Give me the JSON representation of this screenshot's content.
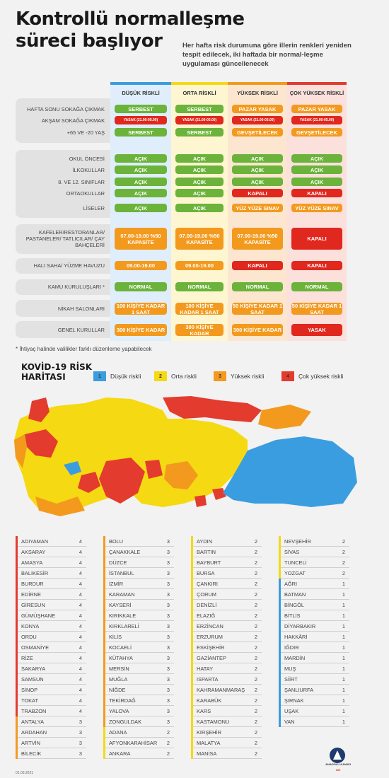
{
  "title_line1": "Kontrollü normalleşme",
  "title_line2": "süreci başlıyor",
  "subtitle": "Her hafta risk durumuna göre illerin renkleri yeniden tespit edilecek, iki haftada bir normal-leşme uygulaması güncellenecek",
  "columns": [
    "DÜŞÜK RİSKLİ",
    "ORTA RİSKLİ",
    "YÜKSEK RİSKLİ",
    "ÇOK YÜKSEK RİSKLİ"
  ],
  "column_colors": [
    "#3a9de0",
    "#f5d912",
    "#f39a1e",
    "#e33b2e"
  ],
  "rows": [
    {
      "label": "HAFTA SONU SOKAĞA ÇIKMAK",
      "cells": [
        [
          "SERBEST",
          "g"
        ],
        [
          "SERBEST",
          "g"
        ],
        [
          "PAZAR YASAK",
          "o"
        ],
        [
          "PAZAR YASAK",
          "o"
        ]
      ]
    },
    {
      "label": "AKŞAM SOKAĞA ÇIKMAK",
      "cells": [
        [
          "YASAK (21.00-05.00)",
          "r"
        ],
        [
          "YASAK (21.00-05.00)",
          "r"
        ],
        [
          "YASAK (21.00-05.00)",
          "r"
        ],
        [
          "YASAK (21.00-05.00)",
          "r"
        ]
      ]
    },
    {
      "label": "+65 VE -20 YAŞ",
      "cells": [
        [
          "SERBEST",
          "g"
        ],
        [
          "SERBEST",
          "g"
        ],
        [
          "GEVŞETİLECEK",
          "o"
        ],
        [
          "GEVŞETİLECEK",
          "o"
        ]
      ]
    },
    {
      "label": "OKUL ÖNCESİ",
      "cells": [
        [
          "AÇIK",
          "g"
        ],
        [
          "AÇIK",
          "g"
        ],
        [
          "AÇIK",
          "g"
        ],
        [
          "AÇIK",
          "g"
        ]
      ]
    },
    {
      "label": "İLKOKULLAR",
      "cells": [
        [
          "AÇIK",
          "g"
        ],
        [
          "AÇIK",
          "g"
        ],
        [
          "AÇIK",
          "g"
        ],
        [
          "AÇIK",
          "g"
        ]
      ]
    },
    {
      "label": "8. VE 12. SINIFLAR",
      "cells": [
        [
          "AÇIK",
          "g"
        ],
        [
          "AÇIK",
          "g"
        ],
        [
          "AÇIK",
          "g"
        ],
        [
          "AÇIK",
          "g"
        ]
      ]
    },
    {
      "label": "ORTAOKULLAR",
      "cells": [
        [
          "AÇIK",
          "g"
        ],
        [
          "AÇIK",
          "g"
        ],
        [
          "KAPALI",
          "r"
        ],
        [
          "KAPALI",
          "r"
        ]
      ]
    },
    {
      "label": "LİSELER",
      "cells": [
        [
          "AÇIK",
          "g"
        ],
        [
          "AÇIK",
          "g"
        ],
        [
          "YÜZ YÜZE SINAV",
          "o"
        ],
        [
          "YÜZ YÜZE SINAV",
          "o"
        ]
      ]
    },
    {
      "label": "KAFELER/RESTORANLAR/ PASTANELER/ TATLICILAR/ ÇAY BAHÇELERİ",
      "cells": [
        [
          "07.00-19.00 %50 KAPASİTE",
          "o"
        ],
        [
          "07.00-19.00 %50 KAPASİTE",
          "o"
        ],
        [
          "07.00-19.00 %50 KAPASİTE",
          "o"
        ],
        [
          "KAPALI",
          "r"
        ]
      ]
    },
    {
      "label": "HALI SAHA/ YÜZME HAVUZU",
      "cells": [
        [
          "09.00-19.00",
          "o"
        ],
        [
          "09.00-19.00",
          "o"
        ],
        [
          "KAPALI",
          "r"
        ],
        [
          "KAPALI",
          "r"
        ]
      ]
    },
    {
      "label": "KAMU KURULUŞLARI *",
      "cells": [
        [
          "NORMAL",
          "g"
        ],
        [
          "NORMAL",
          "g"
        ],
        [
          "NORMAL",
          "g"
        ],
        [
          "NORMAL",
          "g"
        ]
      ]
    },
    {
      "label": "NİKAH SALONLARI",
      "cells": [
        [
          "100 KİŞİYE KADAR 1 SAAT",
          "o"
        ],
        [
          "100 KİŞİYE KADAR 1 SAAT",
          "o"
        ],
        [
          "50 KİŞİYE KADAR 1 SAAT",
          "o"
        ],
        [
          "50 KİŞİYE KADAR 1 SAAT",
          "o"
        ]
      ]
    },
    {
      "label": "GENEL KURULLAR",
      "cells": [
        [
          "300 KİŞİYE KADAR",
          "o"
        ],
        [
          "300 KİŞİYE KADAR",
          "o"
        ],
        [
          "300 KİŞİYE KADAR",
          "o"
        ],
        [
          "YASAK",
          "r"
        ]
      ]
    }
  ],
  "footnote": "* İhtiyaç halinde valilikler farklı düzenleme yapabilecek",
  "map_title_line1": "KOVİD-19 RİSK",
  "map_title_line2": "HARİTASI",
  "legend": [
    {
      "num": "1",
      "label": "Düşük riskli",
      "color": "#3a9de0"
    },
    {
      "num": "2",
      "label": "Orta riskli",
      "color": "#f5d912"
    },
    {
      "num": "3",
      "label": "Yüksek riskli",
      "color": "#f39a1e"
    },
    {
      "num": "4",
      "label": "Çok yüksek riskli",
      "color": "#e33b2e"
    }
  ],
  "province_lists": [
    [
      [
        "ADIYAMAN",
        "4"
      ],
      [
        "AKSARAY",
        "4"
      ],
      [
        "AMASYA",
        "4"
      ],
      [
        "BALIKESİR",
        "4"
      ],
      [
        "BURDUR",
        "4"
      ],
      [
        "EDİRNE",
        "4"
      ],
      [
        "GİRESUN",
        "4"
      ],
      [
        "GÜMÜŞHANE",
        "4"
      ],
      [
        "KONYA",
        "4"
      ],
      [
        "ORDU",
        "4"
      ],
      [
        "OSMANİYE",
        "4"
      ],
      [
        "RİZE",
        "4"
      ],
      [
        "SAKARYA",
        "4"
      ],
      [
        "SAMSUN",
        "4"
      ],
      [
        "SİNOP",
        "4"
      ],
      [
        "TOKAT",
        "4"
      ],
      [
        "TRABZON",
        "4"
      ],
      [
        "ANTALYA",
        "3"
      ],
      [
        "ARDAHAN",
        "3"
      ],
      [
        "ARTVİN",
        "3"
      ],
      [
        "BİLECİK",
        "3"
      ]
    ],
    [
      [
        "BOLU",
        "3"
      ],
      [
        "ÇANAKKALE",
        "3"
      ],
      [
        "DÜZCE",
        "3"
      ],
      [
        "İSTANBUL",
        "3"
      ],
      [
        "İZMİR",
        "3"
      ],
      [
        "KARAMAN",
        "3"
      ],
      [
        "KAYSERİ",
        "3"
      ],
      [
        "KIRIKKALE",
        "3"
      ],
      [
        "KIRKLARELİ",
        "3"
      ],
      [
        "KİLİS",
        "3"
      ],
      [
        "KOCAELİ",
        "3"
      ],
      [
        "KÜTAHYA",
        "3"
      ],
      [
        "MERSİN",
        "3"
      ],
      [
        "MUĞLA",
        "3"
      ],
      [
        "NİĞDE",
        "3"
      ],
      [
        "TEKİRDAĞ",
        "3"
      ],
      [
        "YALOVA",
        "3"
      ],
      [
        "ZONGULDAK",
        "3"
      ],
      [
        "ADANA",
        "2"
      ],
      [
        "AFYONKARAHİSAR",
        "2"
      ],
      [
        "ANKARA",
        "2"
      ]
    ],
    [
      [
        "AYDIN",
        "2"
      ],
      [
        "BARTIN",
        "2"
      ],
      [
        "BAYBURT",
        "2"
      ],
      [
        "BURSA",
        "2"
      ],
      [
        "ÇANKIRI",
        "2"
      ],
      [
        "ÇORUM",
        "2"
      ],
      [
        "DENİZLİ",
        "2"
      ],
      [
        "ELAZIĞ",
        "2"
      ],
      [
        "ERZİNCAN",
        "2"
      ],
      [
        "ERZURUM",
        "2"
      ],
      [
        "ESKİŞEHİR",
        "2"
      ],
      [
        "GAZİANTEP",
        "2"
      ],
      [
        "HATAY",
        "2"
      ],
      [
        "ISPARTA",
        "2"
      ],
      [
        "KAHRAMANMARAŞ",
        "2"
      ],
      [
        "KARABÜK",
        "2"
      ],
      [
        "KARS",
        "2"
      ],
      [
        "KASTAMONU",
        "2"
      ],
      [
        "KIRŞEHİR",
        "2"
      ],
      [
        "MALATYA",
        "2"
      ],
      [
        "MANİSA",
        "2"
      ]
    ],
    [
      [
        "NEVŞEHİR",
        "2"
      ],
      [
        "SİVAS",
        "2"
      ],
      [
        "TUNCELİ",
        "2"
      ],
      [
        "YOZGAT",
        "2"
      ],
      [
        "AĞRI",
        "1"
      ],
      [
        "BATMAN",
        "1"
      ],
      [
        "BİNGÖL",
        "1"
      ],
      [
        "BİTLİS",
        "1"
      ],
      [
        "DİYARBAKIR",
        "1"
      ],
      [
        "HAKKÂRİ",
        "1"
      ],
      [
        "IĞDIR",
        "1"
      ],
      [
        "MARDİN",
        "1"
      ],
      [
        "MUŞ",
        "1"
      ],
      [
        "SİİRT",
        "1"
      ],
      [
        "ŞANLIURFA",
        "1"
      ],
      [
        "ŞIRNAK",
        "1"
      ],
      [
        "UŞAK",
        "1"
      ],
      [
        "VAN",
        "1"
      ]
    ]
  ],
  "date": "01.03.2021",
  "logo_text": "ANADOLU AJANSI",
  "logo_sub": "100"
}
